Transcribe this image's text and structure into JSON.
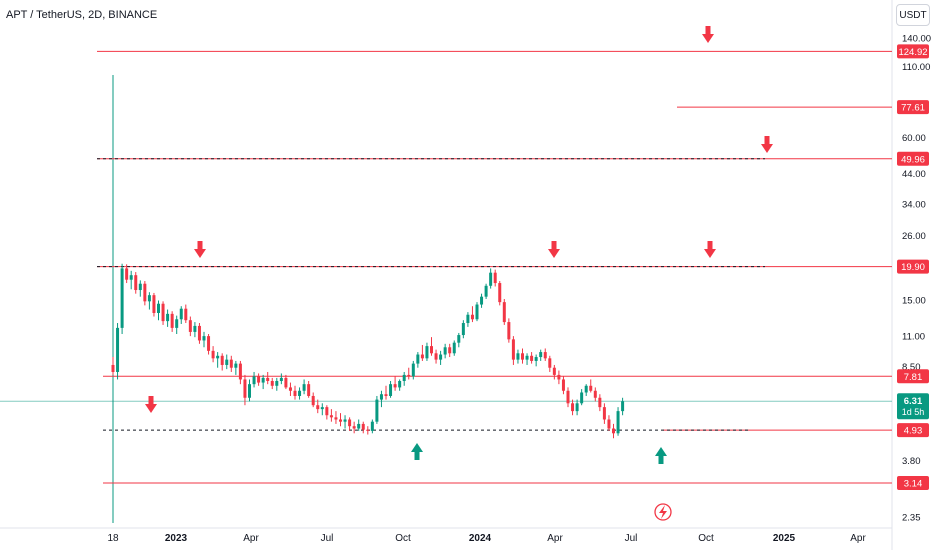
{
  "header": {
    "symbol_title": "APT / TetherUS, 2D, BINANCE",
    "currency": "USDT"
  },
  "colors": {
    "up": "#089981",
    "down": "#f23645",
    "level_line": "#f23645",
    "current_price": "#089981",
    "dashed_line": "#131722"
  },
  "chart_data": {
    "type": "candlestick",
    "y_scale": "log",
    "ylim": [
      2.2,
      165
    ],
    "x_ticks": [
      "18",
      "2023",
      "Apr",
      "Jul",
      "Oct",
      "2024",
      "Apr",
      "Jul",
      "Oct",
      "2025",
      "Apr"
    ],
    "y_ticks": [
      "140.00",
      "110.00",
      "60.00",
      "44.00",
      "34.00",
      "26.00",
      "15.00",
      "11.00",
      "8.50",
      "3.80",
      "2.35"
    ],
    "y_tick_values": [
      140,
      110,
      60,
      44,
      34,
      26,
      15,
      11,
      8.5,
      3.8,
      2.35
    ],
    "horizontal_levels": [
      {
        "value": 124.92,
        "label": "124.92",
        "color": "#f23645",
        "style": "solid"
      },
      {
        "value": 77.61,
        "label": "77.61",
        "color": "#f23645",
        "style": "solid"
      },
      {
        "value": 49.96,
        "label": "49.96",
        "color": "#f23645",
        "style": "dashed"
      },
      {
        "value": 19.9,
        "label": "19.90",
        "color": "#f23645",
        "style": "dashed"
      },
      {
        "value": 7.81,
        "label": "7.81",
        "color": "#f23645",
        "style": "solid"
      },
      {
        "value": 4.93,
        "label": "4.93",
        "color": "#f23645",
        "style": "solid"
      },
      {
        "value": 3.14,
        "label": "3.14",
        "color": "#f23645",
        "style": "solid"
      }
    ],
    "current_price": {
      "value": 6.31,
      "label": "6.31",
      "countdown": "1d 5h"
    },
    "arrows_down": [
      {
        "x_index": 2,
        "at_price": 19.9
      },
      {
        "x_index": 104,
        "at_price": 19.9
      },
      {
        "x_index": 140,
        "at_price": 19.9
      },
      {
        "x_index": 140,
        "at_price": 124.92
      },
      {
        "x_index": 155,
        "at_price": 49.96
      },
      {
        "x_index": -23,
        "at_price": 5.3
      }
    ],
    "arrows_up": [
      {
        "x_index": 75,
        "at_price": 4.6
      },
      {
        "x_index": 131,
        "at_price": 4.6
      }
    ],
    "candles": [
      {
        "o": 8.6,
        "h": 9.2,
        "l": 7.9,
        "c": 8.1
      },
      {
        "o": 8.1,
        "h": 12.3,
        "l": 7.6,
        "c": 11.8
      },
      {
        "o": 11.8,
        "h": 20.4,
        "l": 11.2,
        "c": 19.6
      },
      {
        "o": 19.6,
        "h": 20.3,
        "l": 17.3,
        "c": 17.8
      },
      {
        "o": 17.8,
        "h": 19.2,
        "l": 16.4,
        "c": 18.5
      },
      {
        "o": 18.5,
        "h": 19.0,
        "l": 15.8,
        "c": 16.3
      },
      {
        "o": 16.3,
        "h": 17.7,
        "l": 15.4,
        "c": 17.2
      },
      {
        "o": 17.2,
        "h": 17.6,
        "l": 14.3,
        "c": 14.8
      },
      {
        "o": 14.8,
        "h": 16.0,
        "l": 13.8,
        "c": 15.6
      },
      {
        "o": 15.6,
        "h": 15.9,
        "l": 13.0,
        "c": 13.4
      },
      {
        "o": 13.4,
        "h": 14.9,
        "l": 12.6,
        "c": 14.5
      },
      {
        "o": 14.5,
        "h": 14.8,
        "l": 12.1,
        "c": 12.5
      },
      {
        "o": 12.5,
        "h": 13.8,
        "l": 11.9,
        "c": 13.3
      },
      {
        "o": 13.3,
        "h": 13.6,
        "l": 11.4,
        "c": 11.8
      },
      {
        "o": 11.8,
        "h": 13.1,
        "l": 11.2,
        "c": 12.7
      },
      {
        "o": 12.7,
        "h": 14.2,
        "l": 12.2,
        "c": 13.9
      },
      {
        "o": 13.9,
        "h": 14.4,
        "l": 12.3,
        "c": 12.6
      },
      {
        "o": 12.6,
        "h": 13.0,
        "l": 11.0,
        "c": 11.4
      },
      {
        "o": 11.4,
        "h": 12.4,
        "l": 10.9,
        "c": 12.0
      },
      {
        "o": 12.0,
        "h": 12.3,
        "l": 10.3,
        "c": 10.6
      },
      {
        "o": 10.6,
        "h": 11.4,
        "l": 10.0,
        "c": 11.0
      },
      {
        "o": 11.0,
        "h": 11.2,
        "l": 9.4,
        "c": 9.7
      },
      {
        "o": 9.7,
        "h": 10.1,
        "l": 8.8,
        "c": 9.1
      },
      {
        "o": 9.1,
        "h": 9.6,
        "l": 8.4,
        "c": 9.3
      },
      {
        "o": 9.3,
        "h": 9.5,
        "l": 8.2,
        "c": 8.6
      },
      {
        "o": 8.6,
        "h": 9.4,
        "l": 8.3,
        "c": 9.0
      },
      {
        "o": 9.0,
        "h": 9.3,
        "l": 8.1,
        "c": 8.4
      },
      {
        "o": 8.4,
        "h": 8.9,
        "l": 7.9,
        "c": 8.7
      },
      {
        "o": 8.7,
        "h": 8.9,
        "l": 7.3,
        "c": 7.6
      },
      {
        "o": 7.6,
        "h": 7.9,
        "l": 6.1,
        "c": 6.5
      },
      {
        "o": 6.5,
        "h": 7.6,
        "l": 6.3,
        "c": 7.3
      },
      {
        "o": 7.3,
        "h": 8.1,
        "l": 7.1,
        "c": 7.8
      },
      {
        "o": 7.8,
        "h": 8.0,
        "l": 7.2,
        "c": 7.4
      },
      {
        "o": 7.4,
        "h": 7.9,
        "l": 7.0,
        "c": 7.7
      },
      {
        "o": 7.7,
        "h": 8.1,
        "l": 7.3,
        "c": 7.5
      },
      {
        "o": 7.5,
        "h": 7.7,
        "l": 7.0,
        "c": 7.2
      },
      {
        "o": 7.2,
        "h": 7.7,
        "l": 6.9,
        "c": 7.5
      },
      {
        "o": 7.5,
        "h": 8.0,
        "l": 7.3,
        "c": 7.7
      },
      {
        "o": 7.7,
        "h": 7.9,
        "l": 7.0,
        "c": 7.1
      },
      {
        "o": 7.1,
        "h": 7.4,
        "l": 6.6,
        "c": 6.9
      },
      {
        "o": 6.9,
        "h": 7.2,
        "l": 6.4,
        "c": 6.6
      },
      {
        "o": 6.6,
        "h": 7.1,
        "l": 6.4,
        "c": 6.9
      },
      {
        "o": 6.9,
        "h": 7.6,
        "l": 6.7,
        "c": 7.3
      },
      {
        "o": 7.3,
        "h": 7.5,
        "l": 6.5,
        "c": 6.6
      },
      {
        "o": 6.6,
        "h": 6.8,
        "l": 6.0,
        "c": 6.1
      },
      {
        "o": 6.1,
        "h": 6.4,
        "l": 5.7,
        "c": 5.9
      },
      {
        "o": 5.9,
        "h": 6.2,
        "l": 5.6,
        "c": 6.0
      },
      {
        "o": 6.0,
        "h": 6.1,
        "l": 5.4,
        "c": 5.6
      },
      {
        "o": 5.6,
        "h": 5.9,
        "l": 5.3,
        "c": 5.5
      },
      {
        "o": 5.5,
        "h": 5.8,
        "l": 5.2,
        "c": 5.4
      },
      {
        "o": 5.4,
        "h": 5.7,
        "l": 5.1,
        "c": 5.3
      },
      {
        "o": 5.3,
        "h": 5.6,
        "l": 5.0,
        "c": 5.4
      },
      {
        "o": 5.4,
        "h": 5.5,
        "l": 4.9,
        "c": 5.1
      },
      {
        "o": 5.1,
        "h": 5.3,
        "l": 4.8,
        "c": 5.0
      },
      {
        "o": 5.0,
        "h": 5.4,
        "l": 4.9,
        "c": 5.2
      },
      {
        "o": 5.2,
        "h": 5.3,
        "l": 4.8,
        "c": 4.95
      },
      {
        "o": 4.95,
        "h": 5.1,
        "l": 4.75,
        "c": 4.9
      },
      {
        "o": 4.9,
        "h": 5.4,
        "l": 4.8,
        "c": 5.3
      },
      {
        "o": 5.3,
        "h": 6.6,
        "l": 5.2,
        "c": 6.4
      },
      {
        "o": 6.4,
        "h": 6.9,
        "l": 6.0,
        "c": 6.7
      },
      {
        "o": 6.7,
        "h": 7.2,
        "l": 6.4,
        "c": 6.6
      },
      {
        "o": 6.6,
        "h": 7.5,
        "l": 6.5,
        "c": 7.3
      },
      {
        "o": 7.3,
        "h": 7.8,
        "l": 6.9,
        "c": 7.1
      },
      {
        "o": 7.1,
        "h": 7.6,
        "l": 6.9,
        "c": 7.5
      },
      {
        "o": 7.5,
        "h": 8.1,
        "l": 7.2,
        "c": 7.9
      },
      {
        "o": 7.9,
        "h": 8.4,
        "l": 7.6,
        "c": 7.8
      },
      {
        "o": 7.8,
        "h": 8.9,
        "l": 7.6,
        "c": 8.7
      },
      {
        "o": 8.7,
        "h": 9.6,
        "l": 8.4,
        "c": 9.4
      },
      {
        "o": 9.4,
        "h": 10.2,
        "l": 8.9,
        "c": 9.1
      },
      {
        "o": 9.1,
        "h": 10.4,
        "l": 8.9,
        "c": 10.1
      },
      {
        "o": 10.1,
        "h": 10.9,
        "l": 9.3,
        "c": 9.5
      },
      {
        "o": 9.5,
        "h": 9.8,
        "l": 8.7,
        "c": 9.0
      },
      {
        "o": 9.0,
        "h": 9.7,
        "l": 8.6,
        "c": 9.4
      },
      {
        "o": 9.4,
        "h": 10.3,
        "l": 9.1,
        "c": 10.0
      },
      {
        "o": 10.0,
        "h": 10.3,
        "l": 9.2,
        "c": 9.5
      },
      {
        "o": 9.5,
        "h": 10.6,
        "l": 9.3,
        "c": 10.4
      },
      {
        "o": 10.4,
        "h": 11.3,
        "l": 10.0,
        "c": 11.1
      },
      {
        "o": 11.1,
        "h": 12.6,
        "l": 10.8,
        "c": 12.3
      },
      {
        "o": 12.3,
        "h": 13.5,
        "l": 11.9,
        "c": 13.2
      },
      {
        "o": 13.2,
        "h": 14.2,
        "l": 12.4,
        "c": 12.7
      },
      {
        "o": 12.7,
        "h": 14.7,
        "l": 12.5,
        "c": 14.4
      },
      {
        "o": 14.4,
        "h": 15.8,
        "l": 14.0,
        "c": 15.4
      },
      {
        "o": 15.4,
        "h": 17.2,
        "l": 15.1,
        "c": 16.9
      },
      {
        "o": 16.9,
        "h": 19.6,
        "l": 16.5,
        "c": 18.9
      },
      {
        "o": 18.9,
        "h": 19.4,
        "l": 16.8,
        "c": 17.3
      },
      {
        "o": 17.3,
        "h": 17.6,
        "l": 14.3,
        "c": 14.7
      },
      {
        "o": 14.7,
        "h": 15.1,
        "l": 12.1,
        "c": 12.4
      },
      {
        "o": 12.4,
        "h": 12.8,
        "l": 10.4,
        "c": 10.7
      },
      {
        "o": 10.7,
        "h": 11.0,
        "l": 8.6,
        "c": 9.0
      },
      {
        "o": 9.0,
        "h": 9.8,
        "l": 8.7,
        "c": 9.5
      },
      {
        "o": 9.5,
        "h": 9.9,
        "l": 8.7,
        "c": 9.0
      },
      {
        "o": 9.0,
        "h": 9.5,
        "l": 8.6,
        "c": 9.3
      },
      {
        "o": 9.3,
        "h": 9.6,
        "l": 8.7,
        "c": 8.9
      },
      {
        "o": 8.9,
        "h": 9.4,
        "l": 8.5,
        "c": 9.2
      },
      {
        "o": 9.2,
        "h": 9.8,
        "l": 8.9,
        "c": 9.6
      },
      {
        "o": 9.6,
        "h": 9.9,
        "l": 8.9,
        "c": 9.1
      },
      {
        "o": 9.1,
        "h": 9.3,
        "l": 8.1,
        "c": 8.4
      },
      {
        "o": 8.4,
        "h": 8.6,
        "l": 7.6,
        "c": 7.9
      },
      {
        "o": 7.9,
        "h": 8.2,
        "l": 7.3,
        "c": 7.6
      },
      {
        "o": 7.6,
        "h": 7.8,
        "l": 6.7,
        "c": 6.9
      },
      {
        "o": 6.9,
        "h": 7.1,
        "l": 6.0,
        "c": 6.2
      },
      {
        "o": 6.2,
        "h": 6.4,
        "l": 5.6,
        "c": 5.8
      },
      {
        "o": 5.8,
        "h": 6.4,
        "l": 5.6,
        "c": 6.2
      },
      {
        "o": 6.2,
        "h": 7.0,
        "l": 6.1,
        "c": 6.8
      },
      {
        "o": 6.8,
        "h": 7.3,
        "l": 6.6,
        "c": 7.2
      },
      {
        "o": 7.2,
        "h": 7.6,
        "l": 6.8,
        "c": 6.9
      },
      {
        "o": 6.9,
        "h": 7.1,
        "l": 6.3,
        "c": 6.5
      },
      {
        "o": 6.5,
        "h": 6.7,
        "l": 5.8,
        "c": 6.0
      },
      {
        "o": 6.0,
        "h": 6.2,
        "l": 5.2,
        "c": 5.4
      },
      {
        "o": 5.4,
        "h": 5.6,
        "l": 4.9,
        "c": 5.0
      },
      {
        "o": 5.0,
        "h": 5.2,
        "l": 4.6,
        "c": 4.8
      },
      {
        "o": 4.8,
        "h": 6.0,
        "l": 4.7,
        "c": 5.8
      },
      {
        "o": 5.8,
        "h": 6.5,
        "l": 5.6,
        "c": 6.31
      }
    ]
  },
  "watermark_icon": "tradingview-bolt-icon"
}
